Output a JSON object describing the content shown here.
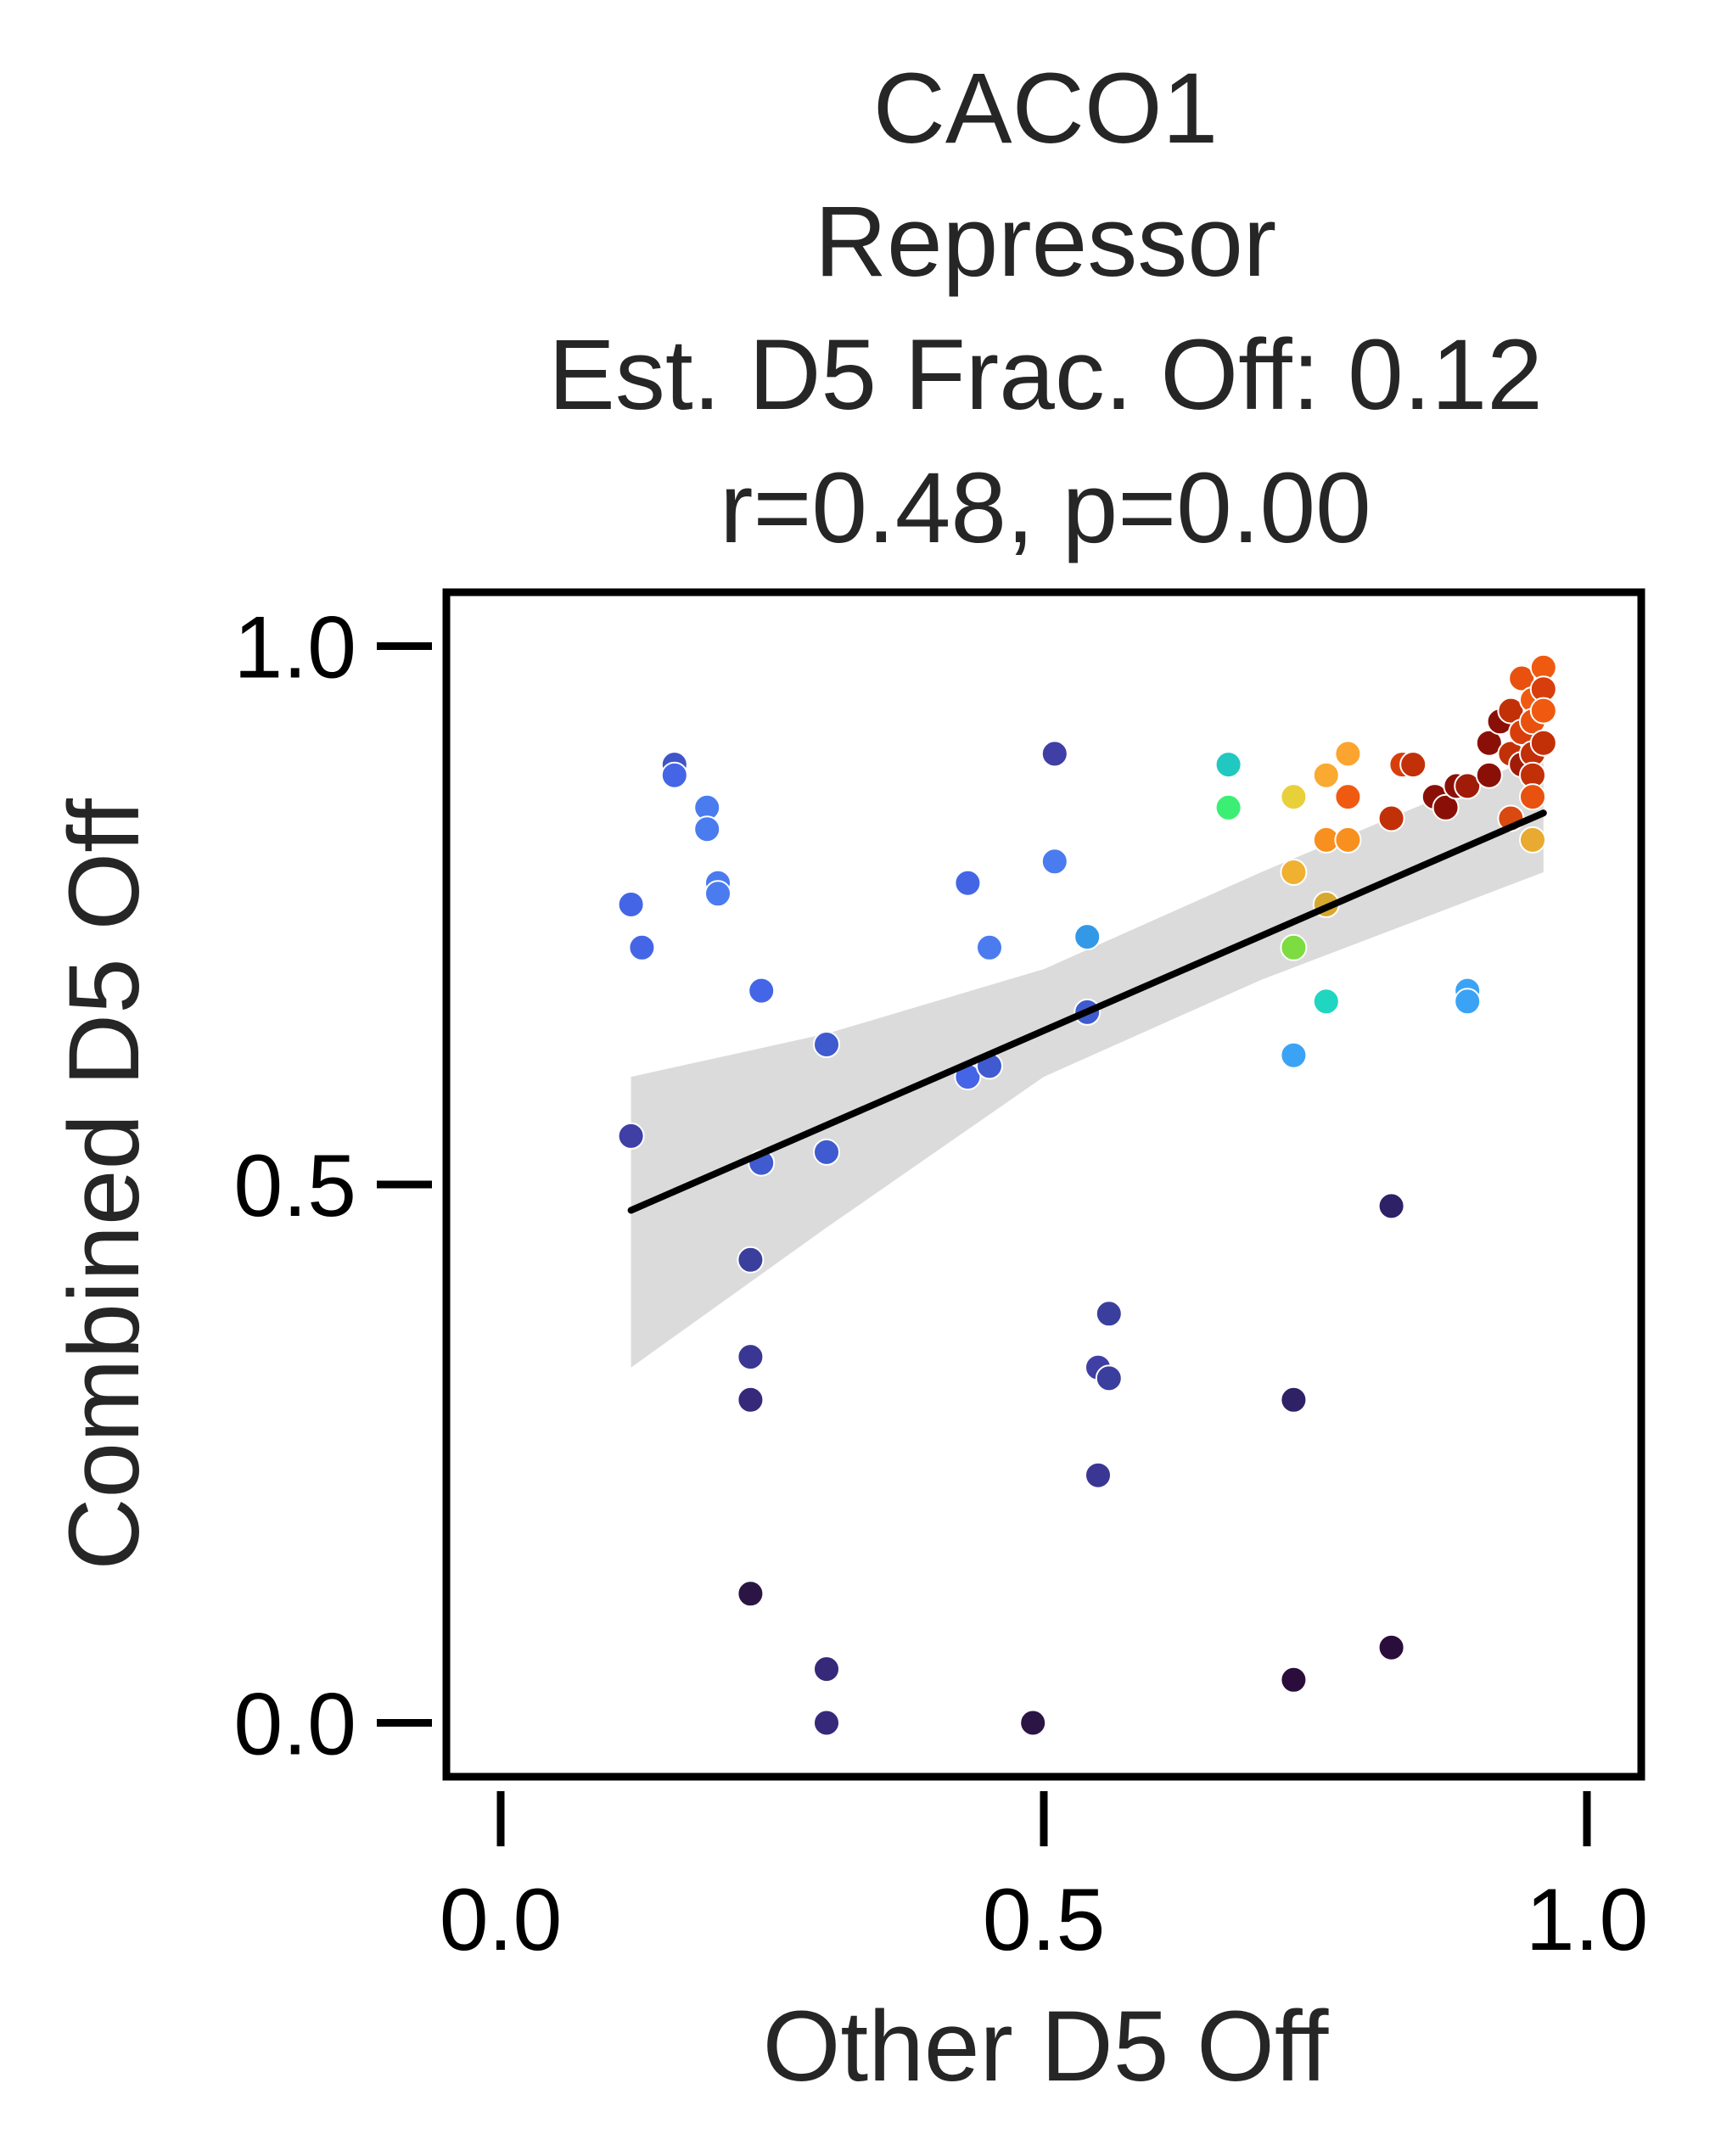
{
  "chart_data": {
    "type": "scatter",
    "title_lines": [
      "CACO1",
      "Repressor",
      "Est. D5 Frac. Off: 0.12",
      "r=0.48, p=0.00"
    ],
    "xlabel": "Other D5 Off",
    "ylabel": "Combined D5 Off",
    "xlim": [
      -0.05,
      1.05
    ],
    "ylim": [
      -0.05,
      1.05
    ],
    "xticks": [
      0.0,
      0.5,
      1.0
    ],
    "yticks": [
      0.0,
      0.5,
      1.0
    ],
    "xtick_labels": [
      "0.0",
      "0.5",
      "1.0"
    ],
    "ytick_labels": [
      "0.0",
      "0.5",
      "1.0"
    ],
    "grid": false,
    "legend": "none",
    "colormap": "turbo",
    "regression": {
      "x_start": 0.12,
      "x_end": 0.96,
      "y_start": 0.476,
      "y_end": 0.845,
      "ci_lower": [
        [
          0.12,
          0.33
        ],
        [
          0.3,
          0.46
        ],
        [
          0.5,
          0.6
        ],
        [
          0.7,
          0.69
        ],
        [
          0.96,
          0.79
        ]
      ],
      "ci_upper": [
        [
          0.12,
          0.6
        ],
        [
          0.3,
          0.64
        ],
        [
          0.5,
          0.7
        ],
        [
          0.7,
          0.79
        ],
        [
          0.96,
          0.9
        ]
      ]
    },
    "points": [
      {
        "x": 0.12,
        "y": 0.76,
        "color": "#4466e6"
      },
      {
        "x": 0.13,
        "y": 0.72,
        "color": "#4466e6"
      },
      {
        "x": 0.16,
        "y": 0.89,
        "color": "#3f54c8"
      },
      {
        "x": 0.16,
        "y": 0.88,
        "color": "#4466e6"
      },
      {
        "x": 0.19,
        "y": 0.85,
        "color": "#4a7cef"
      },
      {
        "x": 0.19,
        "y": 0.83,
        "color": "#4a7cef"
      },
      {
        "x": 0.2,
        "y": 0.78,
        "color": "#4a7cef"
      },
      {
        "x": 0.2,
        "y": 0.77,
        "color": "#4a7cef"
      },
      {
        "x": 0.24,
        "y": 0.68,
        "color": "#4466e6"
      },
      {
        "x": 0.12,
        "y": 0.545,
        "color": "#3f3fa6"
      },
      {
        "x": 0.24,
        "y": 0.52,
        "color": "#3f5bcf"
      },
      {
        "x": 0.23,
        "y": 0.43,
        "color": "#3a3f9e"
      },
      {
        "x": 0.23,
        "y": 0.34,
        "color": "#3a3794"
      },
      {
        "x": 0.23,
        "y": 0.3,
        "color": "#36297a"
      },
      {
        "x": 0.23,
        "y": 0.12,
        "color": "#2b1545"
      },
      {
        "x": 0.3,
        "y": 0.63,
        "color": "#3f5bcf"
      },
      {
        "x": 0.3,
        "y": 0.53,
        "color": "#3f5bcf"
      },
      {
        "x": 0.3,
        "y": 0.05,
        "color": "#36297a"
      },
      {
        "x": 0.3,
        "y": 0.0,
        "color": "#36297a"
      },
      {
        "x": 0.43,
        "y": 0.78,
        "color": "#4466e6"
      },
      {
        "x": 0.43,
        "y": 0.6,
        "color": "#4466e6"
      },
      {
        "x": 0.45,
        "y": 0.61,
        "color": "#3f5bcf"
      },
      {
        "x": 0.45,
        "y": 0.72,
        "color": "#4a7cef"
      },
      {
        "x": 0.49,
        "y": 0.0,
        "color": "#2b1545"
      },
      {
        "x": 0.51,
        "y": 0.9,
        "color": "#3f3fa6"
      },
      {
        "x": 0.51,
        "y": 0.8,
        "color": "#4a7cef"
      },
      {
        "x": 0.54,
        "y": 0.73,
        "color": "#3399e6"
      },
      {
        "x": 0.54,
        "y": 0.66,
        "color": "#3f5bcf"
      },
      {
        "x": 0.55,
        "y": 0.33,
        "color": "#3f3fa6"
      },
      {
        "x": 0.56,
        "y": 0.32,
        "color": "#3a3f9e"
      },
      {
        "x": 0.56,
        "y": 0.38,
        "color": "#3a3f9e"
      },
      {
        "x": 0.55,
        "y": 0.23,
        "color": "#3a3794"
      },
      {
        "x": 0.67,
        "y": 0.89,
        "color": "#20c8c0"
      },
      {
        "x": 0.67,
        "y": 0.85,
        "color": "#3bef75"
      },
      {
        "x": 0.73,
        "y": 0.86,
        "color": "#e8d03a"
      },
      {
        "x": 0.73,
        "y": 0.79,
        "color": "#f0b030"
      },
      {
        "x": 0.73,
        "y": 0.72,
        "color": "#7ddc40"
      },
      {
        "x": 0.73,
        "y": 0.62,
        "color": "#3ba3f5"
      },
      {
        "x": 0.73,
        "y": 0.3,
        "color": "#2f2165"
      },
      {
        "x": 0.73,
        "y": 0.04,
        "color": "#2b0d3c"
      },
      {
        "x": 0.76,
        "y": 0.88,
        "color": "#faaa30"
      },
      {
        "x": 0.76,
        "y": 0.82,
        "color": "#f8901f"
      },
      {
        "x": 0.76,
        "y": 0.76,
        "color": "#d7a830"
      },
      {
        "x": 0.76,
        "y": 0.67,
        "color": "#20d6c0"
      },
      {
        "x": 0.78,
        "y": 0.9,
        "color": "#fba430"
      },
      {
        "x": 0.78,
        "y": 0.86,
        "color": "#f05a10"
      },
      {
        "x": 0.78,
        "y": 0.82,
        "color": "#f8901f"
      },
      {
        "x": 0.82,
        "y": 0.84,
        "color": "#c23008"
      },
      {
        "x": 0.82,
        "y": 0.48,
        "color": "#2f2165"
      },
      {
        "x": 0.82,
        "y": 0.07,
        "color": "#2b0d3c"
      },
      {
        "x": 0.83,
        "y": 0.89,
        "color": "#d83e0c"
      },
      {
        "x": 0.84,
        "y": 0.89,
        "color": "#c23008"
      },
      {
        "x": 0.86,
        "y": 0.86,
        "color": "#8a1007"
      },
      {
        "x": 0.87,
        "y": 0.85,
        "color": "#8a1007"
      },
      {
        "x": 0.88,
        "y": 0.87,
        "color": "#8a1007"
      },
      {
        "x": 0.89,
        "y": 0.87,
        "color": "#a01c08"
      },
      {
        "x": 0.89,
        "y": 0.68,
        "color": "#3ba3f5"
      },
      {
        "x": 0.89,
        "y": 0.67,
        "color": "#3ba3f5"
      },
      {
        "x": 0.91,
        "y": 0.91,
        "color": "#8a1007"
      },
      {
        "x": 0.91,
        "y": 0.88,
        "color": "#8a1007"
      },
      {
        "x": 0.92,
        "y": 0.93,
        "color": "#8a1007"
      },
      {
        "x": 0.93,
        "y": 0.94,
        "color": "#c23008"
      },
      {
        "x": 0.93,
        "y": 0.9,
        "color": "#c23008"
      },
      {
        "x": 0.93,
        "y": 0.84,
        "color": "#d84a10"
      },
      {
        "x": 0.94,
        "y": 0.97,
        "color": "#e8520e"
      },
      {
        "x": 0.94,
        "y": 0.92,
        "color": "#d83e0c"
      },
      {
        "x": 0.94,
        "y": 0.89,
        "color": "#a01c08"
      },
      {
        "x": 0.95,
        "y": 0.95,
        "color": "#f05a10"
      },
      {
        "x": 0.95,
        "y": 0.93,
        "color": "#e8520e"
      },
      {
        "x": 0.95,
        "y": 0.9,
        "color": "#c23008"
      },
      {
        "x": 0.95,
        "y": 0.88,
        "color": "#c23008"
      },
      {
        "x": 0.95,
        "y": 0.86,
        "color": "#e8520e"
      },
      {
        "x": 0.95,
        "y": 0.82,
        "color": "#e8aa30"
      },
      {
        "x": 0.96,
        "y": 0.98,
        "color": "#f05a10"
      },
      {
        "x": 0.96,
        "y": 0.96,
        "color": "#d83e0c"
      },
      {
        "x": 0.96,
        "y": 0.94,
        "color": "#f05a10"
      },
      {
        "x": 0.96,
        "y": 0.91,
        "color": "#c23008"
      }
    ]
  }
}
